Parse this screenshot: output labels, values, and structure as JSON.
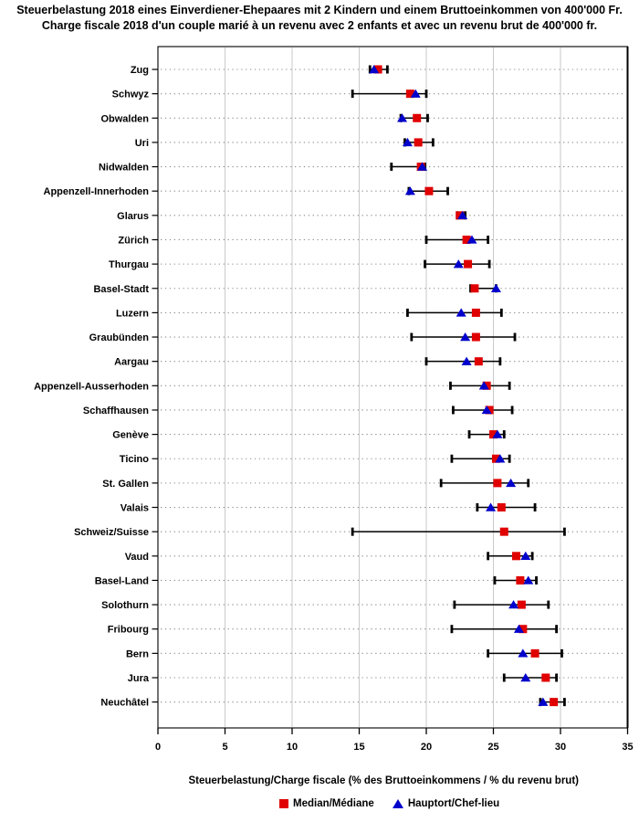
{
  "title": {
    "line1": "Steuerbelastung 2018 eines Einverdiener-Ehepaares mit 2 Kindern und einem Bruttoeinkommen von 400'000 Fr.",
    "line2": "Charge fiscale 2018 d'un couple marié à un revenu avec 2 enfants et avec un revenu brut de 400'000 fr."
  },
  "chart_data": {
    "type": "scatter",
    "subtype": "dot-plot-with-ranges",
    "xlabel": "Steuerbelastung/Charge fiscale (% des Bruttoeinkommens / % du revenu brut)",
    "xlim": [
      0,
      35
    ],
    "xticks": [
      0,
      5,
      10,
      15,
      20,
      25,
      30,
      35
    ],
    "grid": "vertical major gridlines; dotted horizontal guide per category",
    "legend_position": "bottom",
    "categories": [
      "Zug",
      "Schwyz",
      "Obwalden",
      "Uri",
      "Nidwalden",
      "Appenzell-Innerhoden",
      "Glarus",
      "Zürich",
      "Thurgau",
      "Basel-Stadt",
      "Luzern",
      "Graubünden",
      "Aargau",
      "Appenzell-Ausserhoden",
      "Schaffhausen",
      "Genève",
      "Ticino",
      "St. Gallen",
      "Valais",
      "Schweiz/Suisse",
      "Vaud",
      "Basel-Land",
      "Solothurn",
      "Fribourg",
      "Bern",
      "Jura",
      "Neuchâtel"
    ],
    "series": [
      {
        "name": "Minimum",
        "role": "range-low",
        "values": [
          15.8,
          14.5,
          18.1,
          18.4,
          17.4,
          18.7,
          22.3,
          20.0,
          19.9,
          23.3,
          18.6,
          18.9,
          20.0,
          21.8,
          22.0,
          23.2,
          21.9,
          21.1,
          23.8,
          14.5,
          24.6,
          25.1,
          22.1,
          21.9,
          24.6,
          25.8,
          28.5
        ]
      },
      {
        "name": "Maximum",
        "role": "range-high",
        "values": [
          17.1,
          20.0,
          20.1,
          20.5,
          19.9,
          21.6,
          22.9,
          24.6,
          24.7,
          25.2,
          25.6,
          26.6,
          25.5,
          26.2,
          26.4,
          25.8,
          26.2,
          27.6,
          28.1,
          30.3,
          27.9,
          28.2,
          29.1,
          29.7,
          30.1,
          29.7,
          30.3
        ]
      },
      {
        "name": "Median/Médiane",
        "role": "median",
        "marker": "square",
        "color": "#e00000",
        "values": [
          16.4,
          18.8,
          19.3,
          19.4,
          19.6,
          20.2,
          22.5,
          23.0,
          23.1,
          23.6,
          23.7,
          23.7,
          23.9,
          24.5,
          24.7,
          25.0,
          25.2,
          25.3,
          25.6,
          25.8,
          26.7,
          27.0,
          27.1,
          27.2,
          28.1,
          28.9,
          29.5
        ]
      },
      {
        "name": "Hauptort/Chef-lieu",
        "role": "capital",
        "marker": "triangle",
        "color": "#0000cc",
        "values": [
          16.1,
          19.2,
          18.2,
          18.6,
          19.7,
          18.8,
          22.7,
          23.4,
          22.4,
          25.2,
          22.6,
          22.9,
          23.0,
          24.3,
          24.5,
          25.3,
          25.5,
          26.3,
          24.8,
          null,
          27.4,
          27.6,
          26.5,
          26.9,
          27.2,
          27.4,
          28.7
        ]
      }
    ],
    "legend": [
      {
        "label": "Median/Médiane",
        "marker": "square",
        "color": "#e00000"
      },
      {
        "label": "Hauptort/Chef-lieu",
        "marker": "triangle",
        "color": "#0000cc"
      }
    ]
  },
  "colors": {
    "median": "#e00000",
    "capital": "#0000cc",
    "range": "#000000",
    "gridline": "#cacaca",
    "row_guide": "#8f8f8f",
    "frame": "#000000",
    "text": "#000000",
    "background": "#ffffff"
  }
}
